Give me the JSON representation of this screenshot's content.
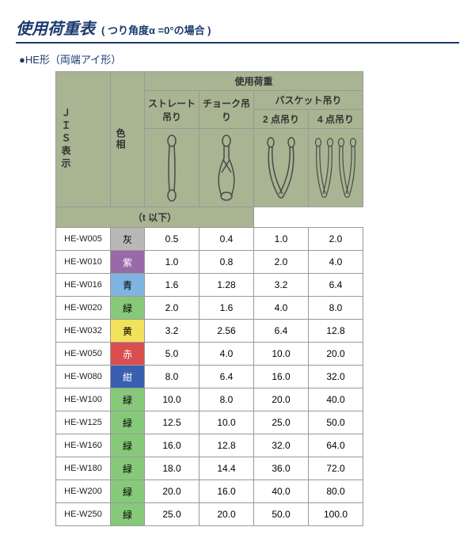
{
  "header": {
    "title": "使用荷重表",
    "subtitle": "( つり角度α =0°の場合 )",
    "form_label": "●HE形（両端アイ形）"
  },
  "table": {
    "jis_header": "ＪＩＳ表示",
    "color_header": "色相",
    "load_header": "使用荷重",
    "straight": "ストレート吊り",
    "choke": "チョーク吊り",
    "basket": "バスケット吊り",
    "two_point": "2 点吊り",
    "four_point": "4 点吊り",
    "unit": "（t 以下）",
    "colors": {
      "灰": "#b8b8b8",
      "紫": "#9a6aa8",
      "青": "#7fb4e0",
      "緑": "#86c97a",
      "黄": "#f2e15a",
      "赤": "#d94f4f",
      "紺": "#3a5fb0"
    },
    "rows": [
      {
        "code": "HE-W005",
        "color": "灰",
        "v": [
          "0.5",
          "0.4",
          "1.0",
          "2.0"
        ]
      },
      {
        "code": "HE-W010",
        "color": "紫",
        "v": [
          "1.0",
          "0.8",
          "2.0",
          "4.0"
        ]
      },
      {
        "code": "HE-W016",
        "color": "青",
        "v": [
          "1.6",
          "1.28",
          "3.2",
          "6.4"
        ]
      },
      {
        "code": "HE-W020",
        "color": "緑",
        "v": [
          "2.0",
          "1.6",
          "4.0",
          "8.0"
        ]
      },
      {
        "code": "HE-W032",
        "color": "黄",
        "v": [
          "3.2",
          "2.56",
          "6.4",
          "12.8"
        ]
      },
      {
        "code": "HE-W050",
        "color": "赤",
        "v": [
          "5.0",
          "4.0",
          "10.0",
          "20.0"
        ]
      },
      {
        "code": "HE-W080",
        "color": "紺",
        "v": [
          "8.0",
          "6.4",
          "16.0",
          "32.0"
        ]
      },
      {
        "code": "HE-W100",
        "color": "緑",
        "v": [
          "10.0",
          "8.0",
          "20.0",
          "40.0"
        ]
      },
      {
        "code": "HE-W125",
        "color": "緑",
        "v": [
          "12.5",
          "10.0",
          "25.0",
          "50.0"
        ]
      },
      {
        "code": "HE-W160",
        "color": "緑",
        "v": [
          "16.0",
          "12.8",
          "32.0",
          "64.0"
        ]
      },
      {
        "code": "HE-W180",
        "color": "緑",
        "v": [
          "18.0",
          "14.4",
          "36.0",
          "72.0"
        ]
      },
      {
        "code": "HE-W200",
        "color": "緑",
        "v": [
          "20.0",
          "16.0",
          "40.0",
          "80.0"
        ]
      },
      {
        "code": "HE-W250",
        "color": "緑",
        "v": [
          "25.0",
          "20.0",
          "50.0",
          "100.0"
        ]
      }
    ]
  },
  "svg": {
    "stroke": "#4a4a4a",
    "fill": "#e8e8e8"
  }
}
